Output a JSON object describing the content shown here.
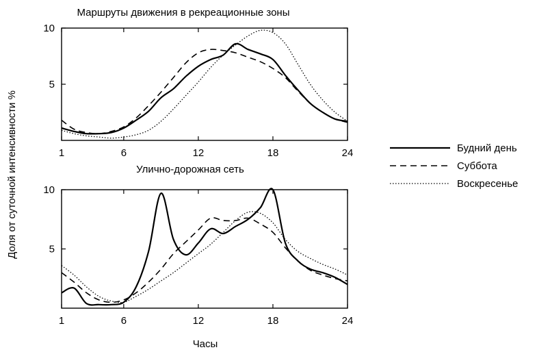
{
  "figure": {
    "ylabel": "Доля от суточной интенсивности   %",
    "xlabel": "Часы"
  },
  "legend": [
    {
      "label": "Будний день",
      "dash": "solid"
    },
    {
      "label": "Суббота",
      "dash": "dashed"
    },
    {
      "label": "Воскресенье",
      "dash": "dotted"
    }
  ],
  "chart_data": [
    {
      "type": "line",
      "title": "Маршруты движения в рекреационные зоны",
      "x": [
        1,
        2,
        3,
        4,
        5,
        6,
        7,
        8,
        9,
        10,
        11,
        12,
        13,
        14,
        15,
        16,
        17,
        18,
        19,
        20,
        21,
        22,
        23,
        24
      ],
      "xticks": [
        1,
        6,
        12,
        18,
        24
      ],
      "yticks": [
        5,
        10
      ],
      "xlim": [
        1,
        24
      ],
      "ylim": [
        0,
        10
      ],
      "series": [
        {
          "name": "Будний день",
          "values": [
            1.1,
            0.8,
            0.6,
            0.6,
            0.7,
            1.1,
            1.8,
            2.6,
            3.8,
            4.6,
            5.7,
            6.6,
            7.2,
            7.6,
            8.6,
            8.1,
            7.7,
            7.2,
            5.8,
            4.5,
            3.3,
            2.5,
            1.9,
            1.7
          ]
        },
        {
          "name": "Суббота",
          "values": [
            1.8,
            1.0,
            0.7,
            0.6,
            0.8,
            1.2,
            2.0,
            3.1,
            4.3,
            5.6,
            6.9,
            7.8,
            8.1,
            8.0,
            7.8,
            7.4,
            7.0,
            6.4,
            5.6,
            4.4,
            3.3,
            2.5,
            1.9,
            1.6
          ]
        },
        {
          "name": "Воскресенье",
          "values": [
            0.9,
            0.6,
            0.4,
            0.3,
            0.2,
            0.3,
            0.5,
            0.9,
            1.7,
            2.8,
            4.0,
            5.2,
            6.5,
            7.6,
            8.5,
            9.3,
            9.8,
            9.6,
            8.6,
            6.8,
            5.0,
            3.6,
            2.5,
            1.7
          ]
        }
      ]
    },
    {
      "type": "line",
      "title": "Улично-дорожная сеть",
      "x": [
        1,
        2,
        3,
        4,
        5,
        6,
        7,
        8,
        9,
        10,
        11,
        12,
        13,
        14,
        15,
        16,
        17,
        18,
        19,
        20,
        21,
        22,
        23,
        24
      ],
      "xticks": [
        1,
        6,
        12,
        18,
        24
      ],
      "yticks": [
        5,
        10
      ],
      "xlim": [
        1,
        24
      ],
      "ylim": [
        0,
        10
      ],
      "series": [
        {
          "name": "Будний день",
          "values": [
            1.3,
            1.7,
            0.4,
            0.3,
            0.3,
            0.5,
            1.8,
            4.8,
            9.7,
            5.8,
            4.5,
            5.5,
            6.7,
            6.3,
            6.9,
            7.5,
            8.5,
            10.0,
            5.5,
            4.0,
            3.3,
            3.0,
            2.6,
            2.0
          ]
        },
        {
          "name": "Суббота",
          "values": [
            3.0,
            2.2,
            1.3,
            0.7,
            0.5,
            0.7,
            1.3,
            2.2,
            3.3,
            4.6,
            5.6,
            6.6,
            7.6,
            7.4,
            7.4,
            7.6,
            7.1,
            6.4,
            5.1,
            4.0,
            3.2,
            2.8,
            2.5,
            2.3
          ]
        },
        {
          "name": "Воскресенье",
          "values": [
            3.6,
            2.8,
            1.8,
            1.0,
            0.6,
            0.5,
            1.0,
            1.6,
            2.3,
            3.0,
            3.8,
            4.6,
            5.4,
            6.4,
            7.4,
            8.1,
            8.0,
            7.2,
            5.8,
            4.8,
            4.2,
            3.7,
            3.3,
            2.8
          ]
        }
      ]
    }
  ]
}
